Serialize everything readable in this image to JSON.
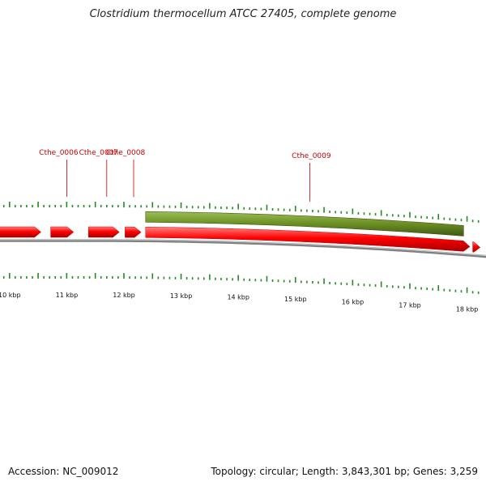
{
  "title": "Clostridium thermocellum ATCC 27405, complete genome",
  "accession_text": "Accession: NC_009012",
  "summary_text": "Topology: circular; Length: 3,843,301 bp; Genes: 3,259",
  "colors": {
    "gene_forward": "#ff0000",
    "gene_reverse": "#6b8e23",
    "tick": "#228b22",
    "label": "#cc0000",
    "backbone": "#808080",
    "scale_text": "#111111"
  },
  "track": {
    "view_start_kbp": 9.72,
    "view_end_kbp": 18.23
  },
  "scale_labels": [
    {
      "kbp": 10,
      "text": "10 kbp"
    },
    {
      "kbp": 11,
      "text": "11 kbp"
    },
    {
      "kbp": 12,
      "text": "12 kbp"
    },
    {
      "kbp": 13,
      "text": "13 kbp"
    },
    {
      "kbp": 14,
      "text": "14 kbp"
    },
    {
      "kbp": 15,
      "text": "15 kbp"
    },
    {
      "kbp": 16,
      "text": "16 kbp"
    },
    {
      "kbp": 17,
      "text": "17 kbp"
    },
    {
      "kbp": 18,
      "text": "18 kbp"
    }
  ],
  "genes": [
    {
      "start_kbp": 9.72,
      "end_kbp": 10.55,
      "strand": "forward"
    },
    {
      "start_kbp": 10.72,
      "end_kbp": 11.12,
      "strand": "forward"
    },
    {
      "start_kbp": 11.38,
      "end_kbp": 11.92,
      "strand": "forward"
    },
    {
      "start_kbp": 12.02,
      "end_kbp": 12.3,
      "strand": "forward"
    },
    {
      "start_kbp": 12.38,
      "end_kbp": 18.05,
      "strand": "forward"
    },
    {
      "start_kbp": 18.1,
      "end_kbp": 18.23,
      "strand": "forward"
    },
    {
      "start_kbp": 12.38,
      "end_kbp": 17.94,
      "strand": "reverse"
    }
  ],
  "gene_labels": [
    {
      "text": "Cthe_0006",
      "kbp": 11.0
    },
    {
      "text": "Cthe_0007",
      "kbp": 11.7
    },
    {
      "text": "Cthe_0008",
      "kbp": 12.17
    },
    {
      "text": "Cthe_0009",
      "kbp": 15.25
    }
  ]
}
